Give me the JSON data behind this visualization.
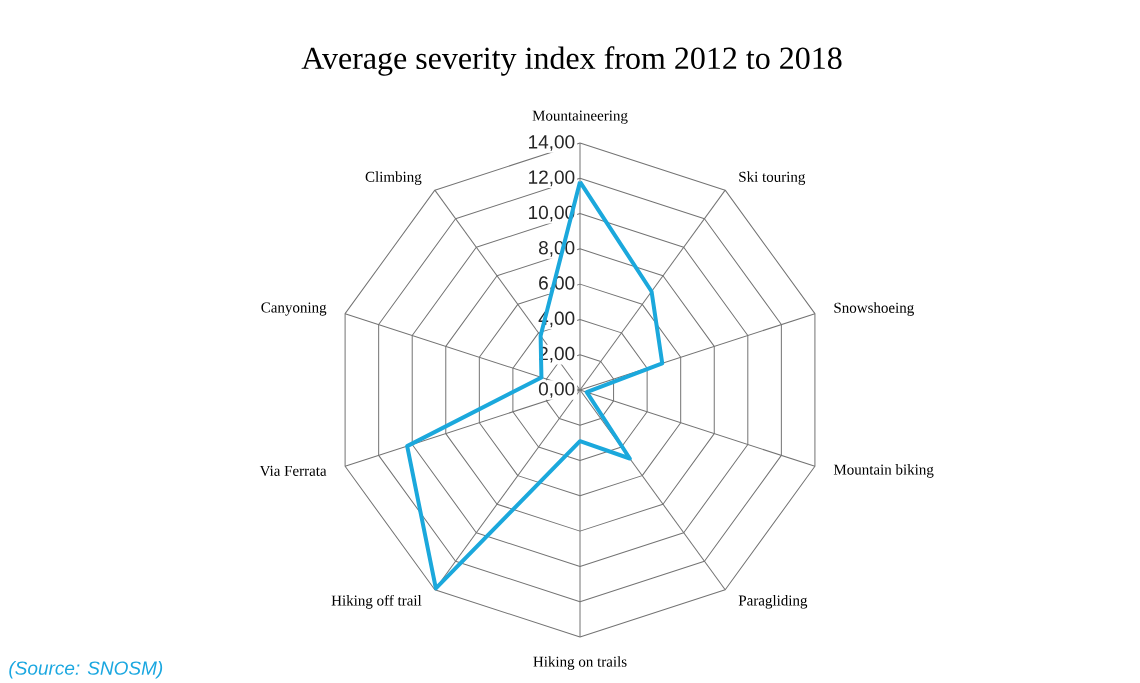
{
  "chart_data": {
    "type": "radar",
    "title": "Average severity index from 2012 to 2018",
    "categories": [
      "Mountaineering",
      "Ski touring",
      "Snowshoeing",
      "Mountain biking",
      "Paragliding",
      "Hiking on trails",
      "Hiking off trail",
      "Via Ferrata",
      "Canyoning",
      "Climbing"
    ],
    "series": [
      {
        "color": "#1ba8dc",
        "values": [
          11.8,
          6.9,
          4.9,
          0.4,
          4.8,
          2.9,
          13.9,
          10.3,
          2.3,
          3.8
        ]
      }
    ],
    "ylim": [
      0,
      14
    ],
    "yticks": [
      {
        "value": 0,
        "label": "0,00"
      },
      {
        "value": 2,
        "label": "2,00"
      },
      {
        "value": 4,
        "label": "4,00"
      },
      {
        "value": 6,
        "label": "6,00"
      },
      {
        "value": 8,
        "label": "8,00"
      },
      {
        "value": 10,
        "label": "10,00"
      },
      {
        "value": 12,
        "label": "12,00"
      },
      {
        "value": 14,
        "label": "14,00"
      }
    ],
    "grid": true,
    "annotations": [
      "(Source: SNOSM)"
    ]
  }
}
